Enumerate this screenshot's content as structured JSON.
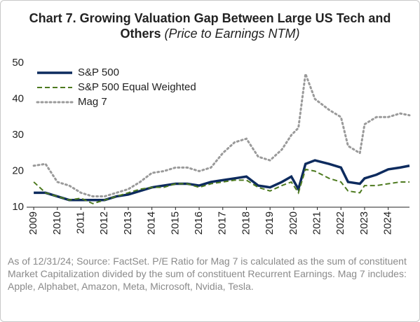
{
  "chart_data": {
    "type": "line",
    "title": "Chart 7. Growing Valuation Gap Between Large US Tech and Others",
    "subtitle": "(Price to Earnings NTM)",
    "note": "As of 12/31/24; Source: FactSet. P/E Ratio for Mag 7 is calculated as the sum of constituent Market Capitalization divided by the sum of constituent Recurrent Earnings. Mag 7 includes: Apple, Alphabet, Amazon, Meta, Microsoft, Nvidia, Tesla.",
    "x": [
      2009,
      2009.5,
      2010,
      2010.5,
      2011,
      2011.5,
      2012,
      2012.5,
      2013,
      2013.5,
      2014,
      2014.5,
      2015,
      2015.5,
      2016,
      2016.5,
      2017,
      2017.5,
      2018,
      2018.5,
      2019,
      2019.5,
      2019.9,
      2020.2,
      2020.5,
      2020.9,
      2021.5,
      2022,
      2022.3,
      2022.8,
      2023,
      2023.5,
      2024,
      2024.5,
      2024.9
    ],
    "series": [
      {
        "name": "S&P 500",
        "color": "#0d2b5e",
        "style": "solid",
        "values": [
          14,
          14,
          13,
          12,
          12,
          12,
          12,
          13,
          13.5,
          14.5,
          15.5,
          16,
          16.5,
          16.5,
          16,
          17,
          17.5,
          18,
          18.5,
          16,
          15.5,
          17,
          18.5,
          15,
          22,
          23,
          22,
          21,
          17,
          16.5,
          18,
          19,
          20.5,
          21,
          21.5
        ]
      },
      {
        "name": "S&P 500 Equal Weighted",
        "color": "#4d7a1f",
        "style": "dashed",
        "values": [
          17,
          14,
          13,
          12,
          12.5,
          11,
          12,
          13,
          14,
          15,
          15.5,
          15.5,
          16.5,
          16.5,
          15.5,
          16.5,
          17,
          17.5,
          17.5,
          15.5,
          14.5,
          16,
          17,
          14,
          20.5,
          20,
          18,
          17,
          14.5,
          14,
          16,
          16,
          16.5,
          17,
          17
        ]
      },
      {
        "name": "Mag 7",
        "color": "#9a9a9a",
        "style": "dotted",
        "values": [
          21.5,
          22,
          17,
          16,
          14,
          13,
          13,
          14,
          15,
          17,
          19.5,
          20,
          21,
          21,
          20,
          21,
          25,
          28,
          29,
          24,
          23,
          26,
          30,
          32,
          47,
          40,
          37,
          35,
          27,
          25,
          33,
          35,
          35,
          36,
          35.5
        ]
      }
    ],
    "xlim": [
      2008.7,
      2024.9
    ],
    "xticks": [
      2009,
      2010,
      2011,
      2012,
      2013,
      2014,
      2015,
      2016,
      2017,
      2018,
      2019,
      2020,
      2021,
      2022,
      2023,
      2024
    ],
    "ylim": [
      10,
      50
    ],
    "yticks": [
      10,
      20,
      30,
      40,
      50
    ],
    "legend": "top-left"
  }
}
